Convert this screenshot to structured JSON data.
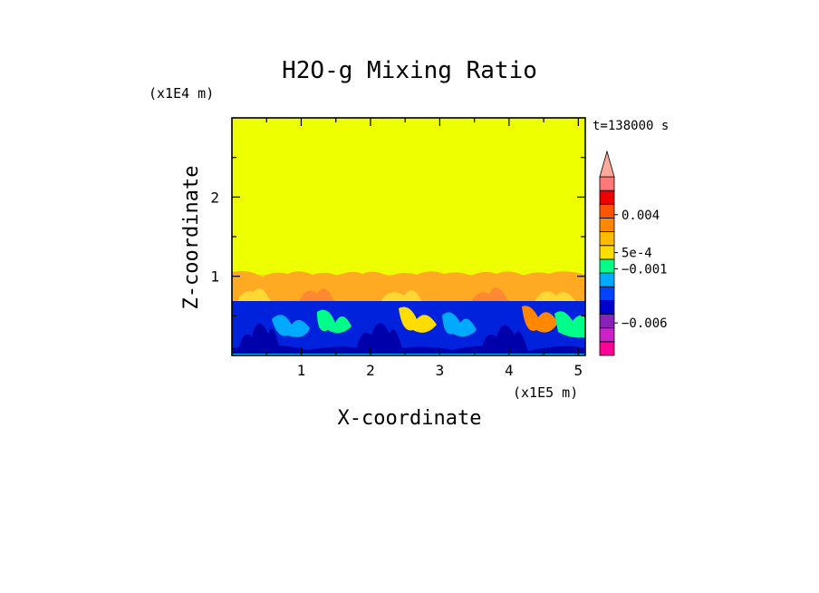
{
  "chart_data": {
    "type": "heatmap",
    "title": "H2O-g Mixing Ratio",
    "xlabel": "X-coordinate",
    "ylabel": "Z-coordinate",
    "x_unit": "(x1E5 m)",
    "y_unit": "(x1E4 m)",
    "time_label": "t=138000 s",
    "xlim": [
      0,
      5.1
    ],
    "ylim": [
      0,
      3
    ],
    "x_ticks": [
      {
        "value": 1,
        "label": "1"
      },
      {
        "value": 2,
        "label": "2"
      },
      {
        "value": 3,
        "label": "3"
      },
      {
        "value": 4,
        "label": "4"
      },
      {
        "value": 5,
        "label": "5"
      }
    ],
    "y_ticks": [
      {
        "value": 1,
        "label": "1"
      },
      {
        "value": 2,
        "label": "2"
      }
    ],
    "layers": [
      {
        "name": "upper",
        "z_range": [
          1.0,
          3.0
        ],
        "value": 0.0,
        "color": "#eeff00"
      },
      {
        "name": "transition",
        "z_range": [
          0.7,
          1.0
        ],
        "value": 0.002,
        "color": "#ffaa22"
      },
      {
        "name": "lower",
        "z_range": [
          0.0,
          0.7
        ],
        "value": -0.002,
        "color": "#0022dd"
      }
    ],
    "colorbar": {
      "colors": [
        "#ff0099",
        "#cc22cc",
        "#8822bb",
        "#0000cc",
        "#0044ff",
        "#00aaff",
        "#00ff88",
        "#ffdd00",
        "#ffbb00",
        "#ff8800",
        "#ff5500",
        "#ee0000",
        "#ff7777"
      ],
      "overflow_color": "#ffaa99",
      "labels": [
        {
          "label": "0.004",
          "value": 0.004
        },
        {
          "label": "5e-4",
          "value": 0.0005
        },
        {
          "label": "−0.001",
          "value": -0.001
        },
        {
          "label": "−0.006",
          "value": -0.006
        }
      ]
    }
  }
}
